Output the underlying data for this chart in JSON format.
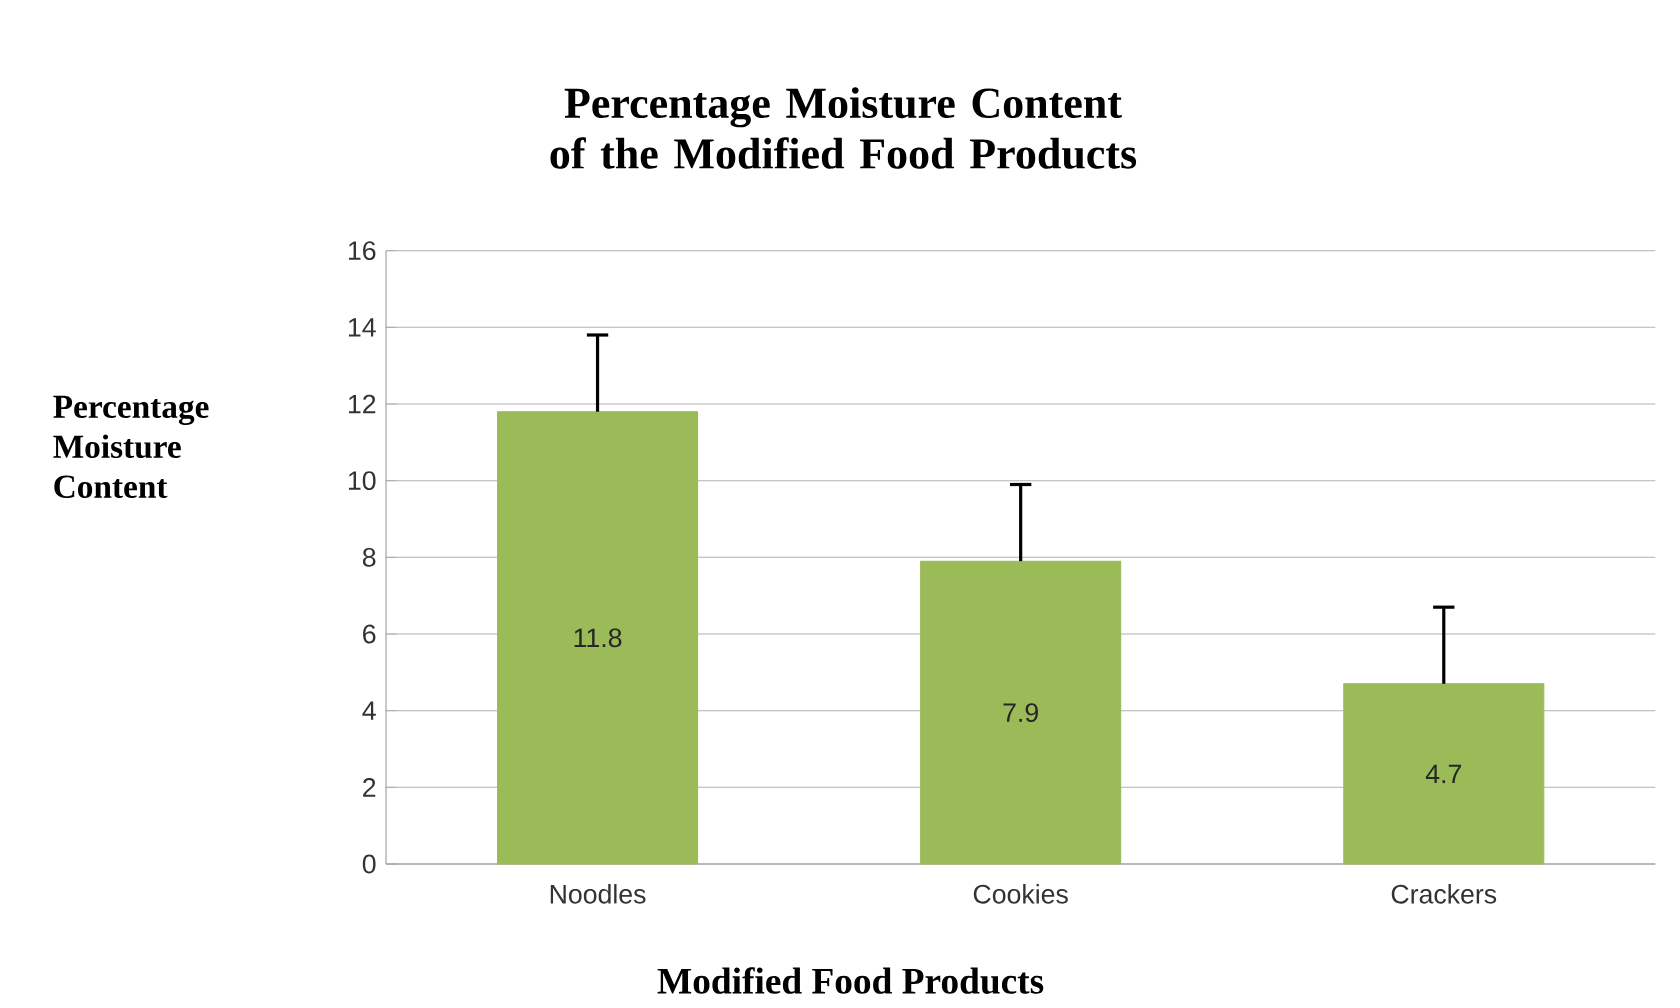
{
  "chart_data": {
    "type": "bar",
    "title": "Percentage Moisture Content of the Modified Food Products",
    "xlabel": "Modified Food Products",
    "ylabel": "Percentage Moisture Content",
    "categories": [
      "Noodles",
      "Cookies",
      "Crackers"
    ],
    "values": [
      11.8,
      7.9,
      4.7
    ],
    "errors": [
      [
        11.8,
        13.8
      ],
      [
        7.9,
        9.9
      ],
      [
        4.7,
        6.7
      ]
    ],
    "color": "#9bbb59",
    "data_labels": true,
    "ylim": [
      0,
      16
    ],
    "yticks": [
      0,
      2,
      4,
      6,
      8,
      10,
      12,
      14,
      16
    ],
    "grid": "y"
  }
}
